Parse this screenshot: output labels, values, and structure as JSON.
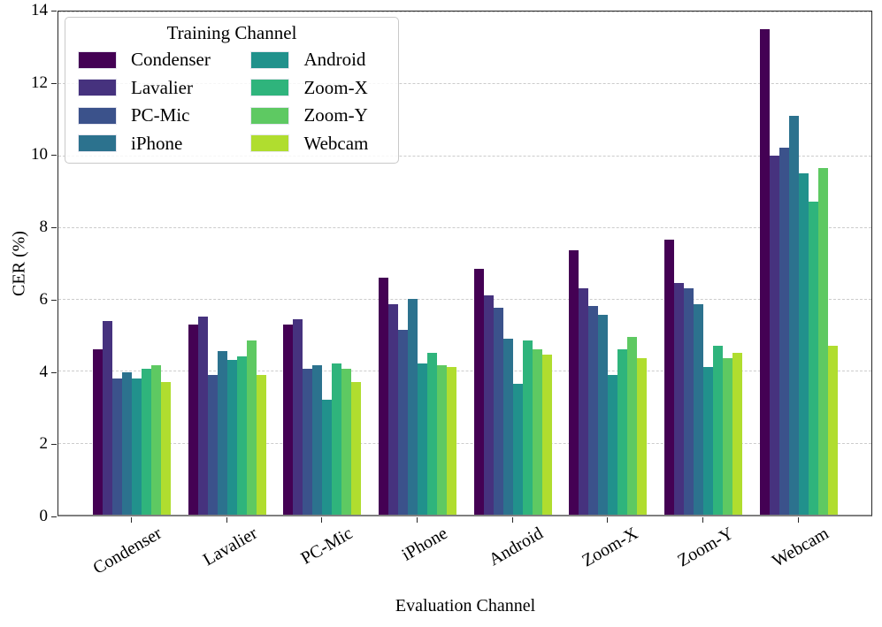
{
  "chart_data": {
    "type": "bar",
    "title": "",
    "xlabel": "Evaluation Channel",
    "ylabel": "CER (%)",
    "ylim": [
      0,
      14
    ],
    "yticks": [
      0,
      2,
      4,
      6,
      8,
      10,
      12,
      14
    ],
    "grid": "horizontal-dashed",
    "legend_title": "Training Channel",
    "legend_position": "upper-left",
    "legend_columns": 2,
    "categories": [
      "Condenser",
      "Lavalier",
      "PC-Mic",
      "iPhone",
      "Android",
      "Zoom-X",
      "Zoom-Y",
      "Webcam"
    ],
    "series": [
      {
        "name": "Condenser",
        "color": "#440154",
        "values": [
          4.6,
          5.3,
          5.3,
          6.6,
          6.85,
          7.35,
          7.65,
          13.5
        ]
      },
      {
        "name": "Lavalier",
        "color": "#46327e",
        "values": [
          5.4,
          5.5,
          5.45,
          5.85,
          6.1,
          6.3,
          6.45,
          10.0
        ]
      },
      {
        "name": "PC-Mic",
        "color": "#3b528b",
        "values": [
          3.8,
          3.9,
          4.05,
          5.15,
          5.75,
          5.8,
          6.3,
          10.2
        ]
      },
      {
        "name": "iPhone",
        "color": "#2c728e",
        "values": [
          3.95,
          4.55,
          4.15,
          6.0,
          4.9,
          5.55,
          5.85,
          11.1
        ]
      },
      {
        "name": "Android",
        "color": "#21918c",
        "values": [
          3.8,
          4.3,
          3.2,
          4.2,
          3.65,
          3.9,
          4.1,
          9.5
        ]
      },
      {
        "name": "Zoom-X",
        "color": "#2fb47c",
        "values": [
          4.05,
          4.4,
          4.2,
          4.5,
          4.85,
          4.6,
          4.7,
          8.7
        ]
      },
      {
        "name": "Zoom-Y",
        "color": "#5ec962",
        "values": [
          4.15,
          4.85,
          4.05,
          4.15,
          4.6,
          4.95,
          4.35,
          9.65
        ]
      },
      {
        "name": "Webcam",
        "color": "#b0dd2f",
        "values": [
          3.7,
          3.9,
          3.7,
          4.1,
          4.45,
          4.35,
          4.5,
          4.7
        ]
      }
    ]
  }
}
